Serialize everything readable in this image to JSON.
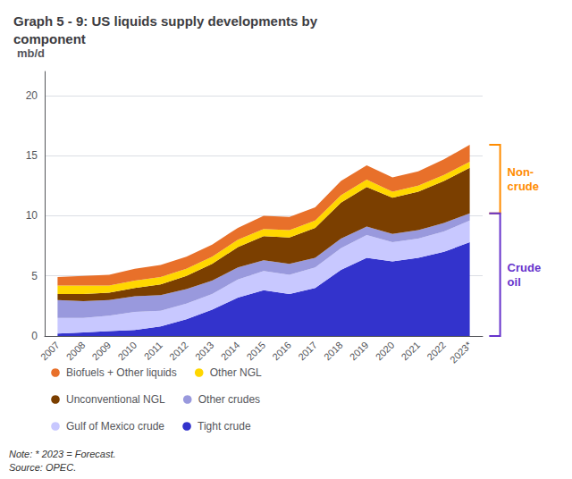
{
  "chart_data": {
    "type": "area",
    "title": "Graph 5 - 9: US liquids supply developments by\ncomponent",
    "ylabel": "mb/d",
    "categories": [
      "2007",
      "2008",
      "2009",
      "2010",
      "2011",
      "2012",
      "2013",
      "2014",
      "2015",
      "2016",
      "2017",
      "2018",
      "2019",
      "2020",
      "2021",
      "2022",
      "2023*"
    ],
    "series": [
      {
        "name": "Tight crude",
        "color": "#3333cc",
        "values": [
          0.2,
          0.3,
          0.4,
          0.5,
          0.8,
          1.4,
          2.2,
          3.2,
          3.8,
          3.5,
          4.0,
          5.5,
          6.5,
          6.2,
          6.5,
          7.0,
          7.8
        ]
      },
      {
        "name": "Gulf of Mexico crude",
        "color": "#c8c8ff",
        "values": [
          1.3,
          1.2,
          1.3,
          1.5,
          1.3,
          1.3,
          1.3,
          1.5,
          1.6,
          1.6,
          1.7,
          1.8,
          1.9,
          1.6,
          1.6,
          1.7,
          1.8
        ]
      },
      {
        "name": "Other crudes",
        "color": "#9999dd",
        "values": [
          1.5,
          1.4,
          1.3,
          1.3,
          1.3,
          1.2,
          1.1,
          1.0,
          0.9,
          0.9,
          0.8,
          0.8,
          0.7,
          0.7,
          0.7,
          0.7,
          0.6
        ]
      },
      {
        "name": "Unconventional NGL",
        "color": "#7b3f00",
        "values": [
          0.5,
          0.6,
          0.6,
          0.7,
          0.9,
          1.1,
          1.4,
          1.7,
          2.0,
          2.2,
          2.5,
          3.0,
          3.3,
          3.0,
          3.2,
          3.5,
          3.8
        ]
      },
      {
        "name": "Other NGL",
        "color": "#ffd700",
        "values": [
          0.7,
          0.7,
          0.6,
          0.6,
          0.6,
          0.6,
          0.6,
          0.6,
          0.6,
          0.6,
          0.6,
          0.6,
          0.6,
          0.5,
          0.5,
          0.5,
          0.5
        ]
      },
      {
        "name": "Biofuels + Other liquids",
        "color": "#e8702a",
        "values": [
          0.7,
          0.8,
          0.9,
          1.0,
          1.0,
          1.0,
          1.0,
          1.0,
          1.1,
          1.1,
          1.1,
          1.2,
          1.2,
          1.2,
          1.2,
          1.3,
          1.4
        ]
      }
    ],
    "stacked": true,
    "ylim": [
      0,
      22
    ],
    "yticks": [
      0,
      5,
      10,
      15,
      20
    ],
    "grid": true,
    "legend": "bottom",
    "annotations": [
      {
        "text": "Non-\ncrude",
        "color": "#ff8c00",
        "series": [
          "Unconventional NGL",
          "Other NGL",
          "Biofuels + Other liquids"
        ]
      },
      {
        "text": "Crude\noil",
        "color": "#6633cc",
        "series": [
          "Tight crude",
          "Gulf of Mexico crude",
          "Other crudes"
        ]
      },
      {
        "text": "Note: * 2023 = Forecast.\nSource: OPEC."
      }
    ]
  }
}
